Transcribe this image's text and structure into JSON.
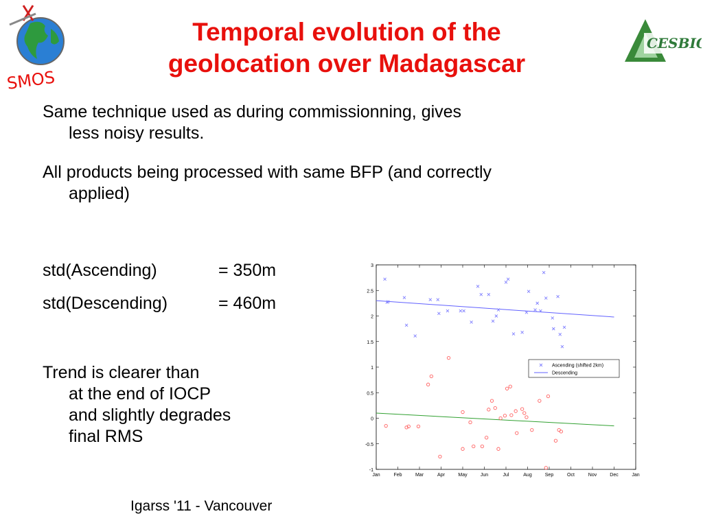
{
  "title": {
    "line1": "Temporal evolution of the",
    "line2": "geolocation over Madagascar"
  },
  "logos": {
    "left_text": "SMOS",
    "right_text": "CESBIO",
    "left_color": "#e8100c",
    "right_color": "#2f9a3a"
  },
  "bullets": [
    {
      "line1": "Same technique used as during commissionning, gives",
      "line2": "less noisy results."
    },
    {
      "line1": "All products being processed with same BFP (and correctly",
      "line2": "applied)"
    }
  ],
  "stats": {
    "asc_label": "std(Ascending)",
    "asc_value": "= 350m",
    "desc_label": "std(Descending)",
    "desc_value": "= 460m"
  },
  "trend": {
    "line1": "Trend is clearer than",
    "line2": "at the end of IOCP",
    "line3": "and slightly degrades",
    "line4": "final RMS"
  },
  "footer": "Igarss '11 - Vancouver",
  "chart_data": {
    "type": "scatter",
    "x_ticks": [
      "Jan",
      "Feb",
      "Mar",
      "Apr",
      "May",
      "Jun",
      "Jul",
      "Aug",
      "Sep",
      "Oct",
      "Nov",
      "Dec",
      "Jan"
    ],
    "y_ticks": [
      "3",
      "2.5",
      "2",
      "1.5",
      "1",
      "0.5",
      "0",
      "-0.5",
      "-1"
    ],
    "ylim": [
      -1,
      3
    ],
    "xlim": [
      0,
      12
    ],
    "grid": false,
    "legend_position": "right",
    "series": [
      {
        "name": "Ascending (shifted 2km)",
        "marker": "x",
        "color": "#8080ff",
        "points": [
          [
            0.4,
            2.72
          ],
          [
            0.5,
            2.27
          ],
          [
            0.55,
            2.28
          ],
          [
            1.3,
            2.36
          ],
          [
            1.4,
            1.82
          ],
          [
            1.8,
            1.61
          ],
          [
            2.5,
            2.32
          ],
          [
            2.85,
            2.32
          ],
          [
            2.9,
            2.05
          ],
          [
            3.3,
            2.1
          ],
          [
            3.9,
            2.1
          ],
          [
            4.05,
            2.1
          ],
          [
            4.4,
            1.88
          ],
          [
            4.7,
            2.58
          ],
          [
            4.85,
            2.42
          ],
          [
            5.2,
            2.42
          ],
          [
            5.4,
            1.9
          ],
          [
            5.55,
            2.0
          ],
          [
            5.65,
            2.12
          ],
          [
            6.0,
            2.66
          ],
          [
            6.1,
            2.72
          ],
          [
            6.35,
            1.65
          ],
          [
            6.75,
            1.68
          ],
          [
            6.95,
            2.07
          ],
          [
            7.05,
            2.48
          ],
          [
            7.35,
            2.12
          ],
          [
            7.45,
            2.25
          ],
          [
            7.6,
            2.1
          ],
          [
            7.75,
            2.85
          ],
          [
            7.85,
            2.35
          ],
          [
            8.15,
            1.96
          ],
          [
            8.2,
            1.75
          ],
          [
            8.4,
            2.38
          ],
          [
            8.5,
            1.64
          ],
          [
            8.7,
            1.78
          ],
          [
            8.6,
            1.4
          ]
        ]
      },
      {
        "name": "Descending",
        "marker": "o",
        "color": "#ff6060",
        "points": [
          [
            0.45,
            -0.15
          ],
          [
            1.4,
            -0.18
          ],
          [
            1.5,
            -0.16
          ],
          [
            1.95,
            -0.16
          ],
          [
            2.4,
            0.66
          ],
          [
            2.55,
            0.82
          ],
          [
            2.95,
            -0.75
          ],
          [
            3.35,
            1.18
          ],
          [
            4.0,
            0.12
          ],
          [
            4.35,
            -0.08
          ],
          [
            4.0,
            -0.6
          ],
          [
            4.5,
            -0.55
          ],
          [
            4.9,
            -0.55
          ],
          [
            5.1,
            -0.38
          ],
          [
            5.2,
            0.17
          ],
          [
            5.35,
            0.34
          ],
          [
            5.5,
            0.2
          ],
          [
            5.65,
            -0.6
          ],
          [
            5.75,
            0.0
          ],
          [
            5.95,
            0.05
          ],
          [
            6.05,
            0.58
          ],
          [
            6.2,
            0.62
          ],
          [
            6.25,
            0.06
          ],
          [
            6.45,
            0.14
          ],
          [
            6.5,
            -0.29
          ],
          [
            6.75,
            0.18
          ],
          [
            6.85,
            0.1
          ],
          [
            6.95,
            0.02
          ],
          [
            7.2,
            -0.23
          ],
          [
            7.55,
            0.34
          ],
          [
            7.85,
            -0.97
          ],
          [
            7.95,
            0.43
          ],
          [
            8.3,
            -0.44
          ],
          [
            8.45,
            -0.23
          ],
          [
            8.55,
            -0.26
          ]
        ]
      }
    ],
    "trend_lines": [
      {
        "name": "Ascending trend",
        "color": "#6060ff",
        "from": [
          0,
          2.3
        ],
        "to": [
          11,
          1.98
        ]
      },
      {
        "name": "Descending trend",
        "color": "#30a030",
        "from": [
          0,
          0.1
        ],
        "to": [
          11,
          -0.15
        ]
      }
    ],
    "legend_entries": [
      {
        "label": "Ascending (shifted 2km)",
        "symbol": "x",
        "color": "#8080ff"
      },
      {
        "label": "Descending",
        "symbol": "line",
        "color": "#6060ff"
      }
    ]
  }
}
